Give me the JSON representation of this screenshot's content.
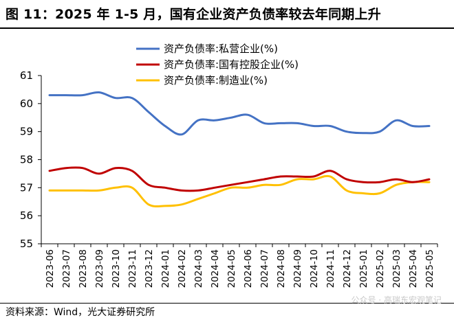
{
  "header": {
    "title": "图 11：2025 年 1-5 月，国有企业资产负债率较去年同期上升"
  },
  "footer": {
    "source": "资料来源：Wind，光大证券研究所",
    "watermark": "公众号 · 高瑞东宏观笔记"
  },
  "chart_data": {
    "type": "line",
    "title": "",
    "xlabel": "",
    "ylabel": "",
    "ylim": [
      55,
      61
    ],
    "yticks": [
      55,
      56,
      57,
      58,
      59,
      60,
      61
    ],
    "grid": false,
    "legend_position": "top",
    "categories": [
      "2023-06",
      "2023-07",
      "2023-08",
      "2023-09",
      "2023-10",
      "2023-11",
      "2023-12",
      "2024-01",
      "2024-02",
      "2024-03",
      "2024-04",
      "2024-05",
      "2024-06",
      "2024-07",
      "2024-08",
      "2024-09",
      "2024-10",
      "2024-11",
      "2024-12",
      "2025-01",
      "2025-02",
      "2025-03",
      "2025-04",
      "2025-05"
    ],
    "series": [
      {
        "name": "资产负债率:私营企业(%)",
        "color": "#4472c4",
        "values": [
          60.3,
          60.3,
          60.3,
          60.4,
          60.2,
          60.2,
          59.7,
          59.2,
          58.9,
          59.4,
          59.4,
          59.5,
          59.6,
          59.3,
          59.3,
          59.3,
          59.2,
          59.2,
          59.0,
          58.95,
          59.0,
          59.4,
          59.2,
          59.2
        ]
      },
      {
        "name": "资产负债率:国有控股企业(%)",
        "color": "#c00000",
        "values": [
          57.6,
          57.7,
          57.7,
          57.5,
          57.7,
          57.6,
          57.1,
          57.0,
          56.9,
          56.9,
          57.0,
          57.1,
          57.2,
          57.3,
          57.4,
          57.4,
          57.4,
          57.6,
          57.3,
          57.2,
          57.2,
          57.3,
          57.2,
          57.3
        ]
      },
      {
        "name": "资产负债率:制造业(%)",
        "color": "#ffc000",
        "values": [
          56.9,
          56.9,
          56.9,
          56.9,
          57.0,
          57.0,
          56.4,
          56.35,
          56.4,
          56.6,
          56.8,
          57.0,
          57.0,
          57.1,
          57.1,
          57.3,
          57.3,
          57.4,
          56.9,
          56.8,
          56.8,
          57.1,
          57.2,
          57.2
        ]
      }
    ]
  }
}
